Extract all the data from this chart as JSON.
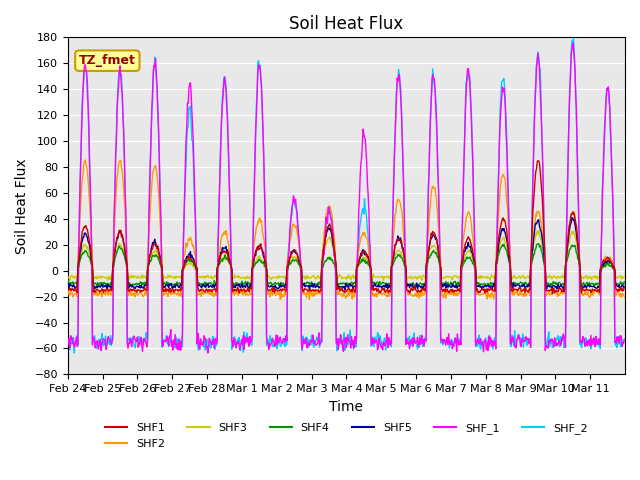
{
  "title": "Soil Heat Flux",
  "ylabel": "Soil Heat Flux",
  "xlabel": "Time",
  "ylim": [
    -80,
    180
  ],
  "yticks": [
    -80,
    -60,
    -40,
    -20,
    0,
    20,
    40,
    60,
    80,
    100,
    120,
    140,
    160,
    180
  ],
  "x_tick_labels": [
    "Feb 24",
    "Feb 25",
    "Feb 26",
    "Feb 27",
    "Feb 28",
    "Mar 1",
    "Mar 2",
    "Mar 3",
    "Mar 4",
    "Mar 5",
    "Mar 6",
    "Mar 7",
    "Mar 8",
    "Mar 9",
    "Mar 10",
    "Mar 11"
  ],
  "series_names": [
    "SHF1",
    "SHF2",
    "SHF3",
    "SHF4",
    "SHF5",
    "SHF_1",
    "SHF_2"
  ],
  "series_colors": [
    "#cc0000",
    "#ff9900",
    "#cccc00",
    "#009900",
    "#000099",
    "#ff00ff",
    "#00ccff"
  ],
  "annotation_text": "TZ_fmet",
  "annotation_bg": "#ffff99",
  "annotation_border": "#cc9900",
  "annotation_text_color": "#990000",
  "background_color": "#e8e8e8",
  "title_fontsize": 12,
  "axis_label_fontsize": 10,
  "tick_fontsize": 8,
  "legend_fontsize": 8,
  "n_days": 16,
  "pts_per_day": 48,
  "shf1_peaks": [
    35,
    30,
    20,
    10,
    15,
    20,
    15,
    35,
    15,
    25,
    30,
    25,
    40,
    85,
    45,
    10
  ],
  "shf2_peaks": [
    85,
    85,
    80,
    25,
    30,
    40,
    35,
    50,
    30,
    55,
    65,
    45,
    75,
    45,
    45,
    10
  ],
  "shf3_peaks": [
    20,
    20,
    15,
    5,
    10,
    10,
    10,
    25,
    10,
    15,
    20,
    15,
    25,
    30,
    30,
    5
  ],
  "shf4_peaks": [
    15,
    18,
    12,
    8,
    10,
    8,
    8,
    10,
    8,
    12,
    15,
    10,
    20,
    20,
    20,
    5
  ],
  "shf5_peaks": [
    28,
    30,
    22,
    12,
    18,
    18,
    15,
    32,
    15,
    25,
    28,
    20,
    32,
    38,
    40,
    8
  ],
  "shf_1_peaks": [
    160,
    155,
    160,
    145,
    145,
    158,
    55,
    48,
    104,
    153,
    150,
    155,
    142,
    165,
    175,
    140
  ],
  "shf_2_peaks": [
    160,
    155,
    160,
    125,
    150,
    160,
    50,
    45,
    50,
    153,
    150,
    155,
    150,
    170,
    178,
    140
  ],
  "shf1_night": -15,
  "shf2_night": -18,
  "shf3_night": -5,
  "shf4_night": -10,
  "shf5_night": -12,
  "shf_1_night": -55,
  "shf_2_night": -55
}
